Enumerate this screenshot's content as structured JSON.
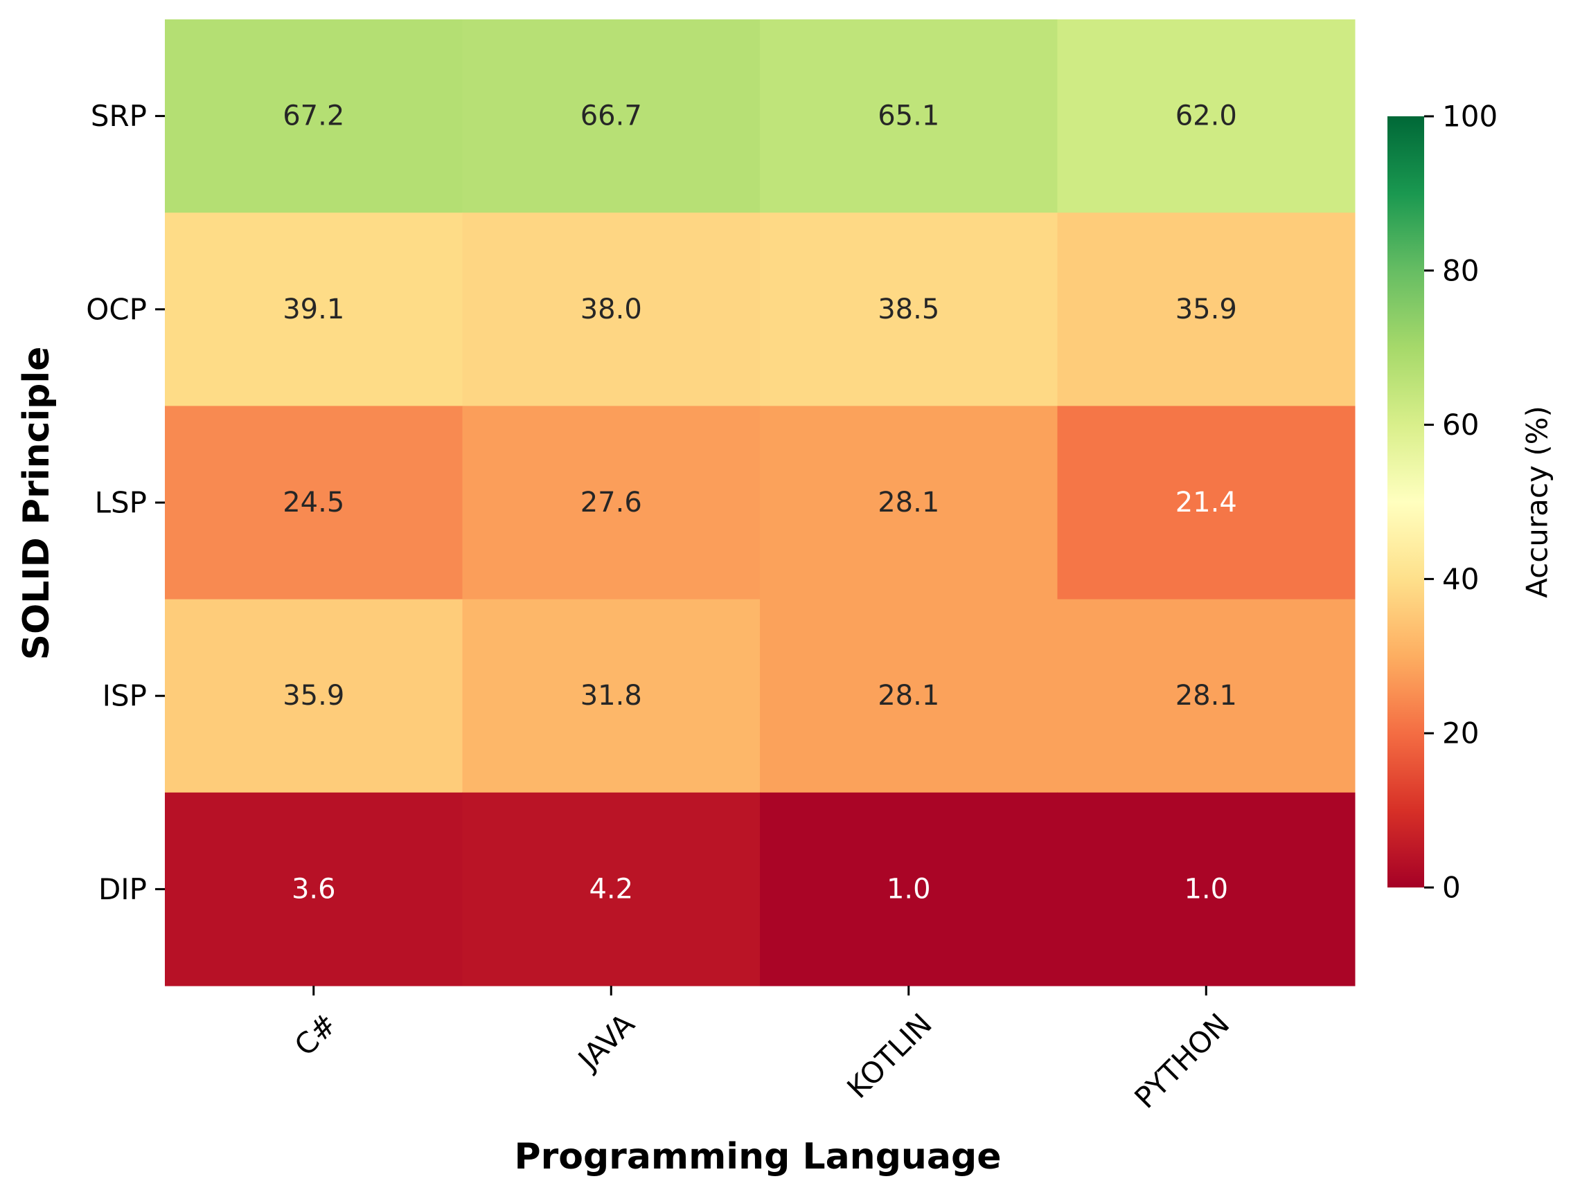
{
  "chart_data": {
    "type": "heatmap",
    "xlabel": "Programming Language",
    "ylabel": "SOLID Principle",
    "x_categories": [
      "C#",
      "JAVA",
      "KOTLIN",
      "PYTHON"
    ],
    "y_categories": [
      "SRP",
      "OCP",
      "LSP",
      "ISP",
      "DIP"
    ],
    "values": [
      [
        67.2,
        66.7,
        65.1,
        62.0
      ],
      [
        39.1,
        38.0,
        38.5,
        35.9
      ],
      [
        24.5,
        27.6,
        28.1,
        21.4
      ],
      [
        35.9,
        31.8,
        28.1,
        28.1
      ],
      [
        3.6,
        4.2,
        1.0,
        1.0
      ]
    ],
    "value_format": "0.0",
    "colorbar": {
      "label": "Accuracy (%)",
      "range": [
        0,
        100
      ],
      "ticks": [
        0,
        20,
        40,
        60,
        80,
        100
      ],
      "colormap": "RdYlGn"
    },
    "annotation_colors": {
      "dark": "#262626",
      "light": "#ffffff"
    }
  }
}
